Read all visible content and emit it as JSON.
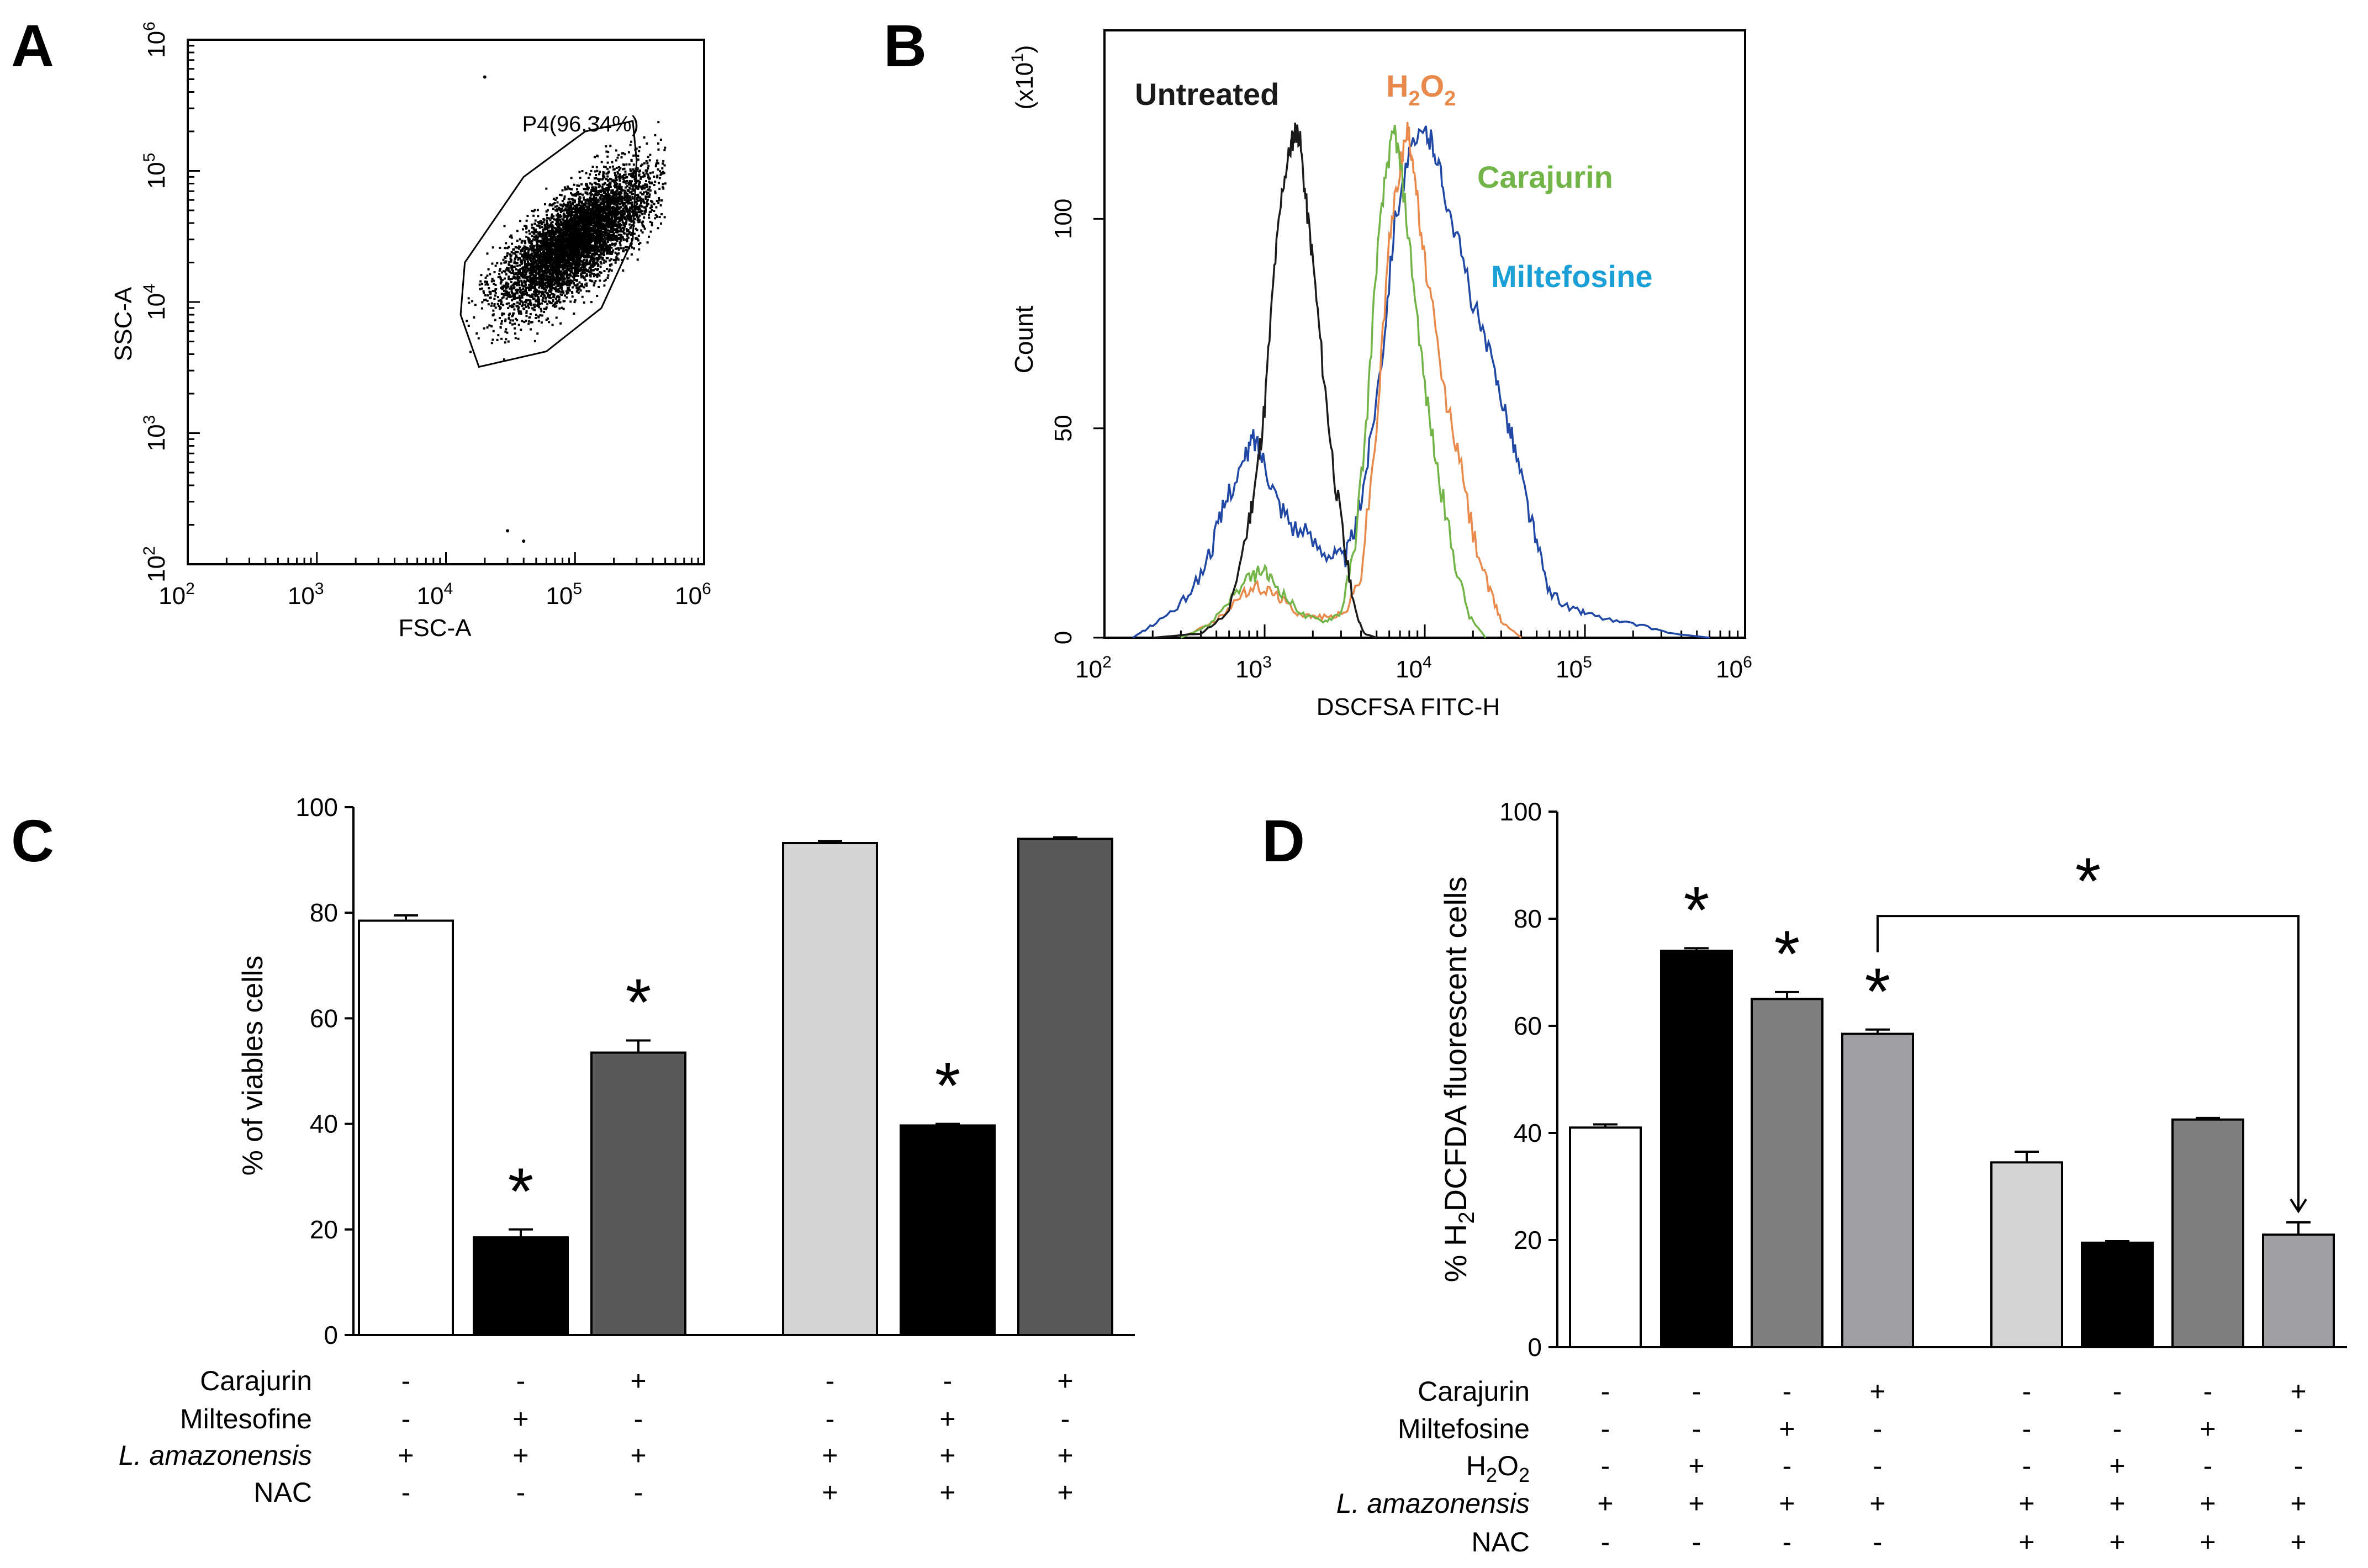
{
  "chart_data": [
    {
      "panel": "A",
      "type": "scatter",
      "xlabel": "FSC-A",
      "ylabel": "SSC-A",
      "xscale": "log",
      "yscale": "log",
      "xlim": [
        100,
        1000000
      ],
      "ylim": [
        100,
        1000000
      ],
      "xticks": [
        "10",
        "10",
        "10",
        "10",
        "10"
      ],
      "xtick_exps": [
        "2",
        "3",
        "4",
        "5",
        "6"
      ],
      "yticks": [
        "10",
        "10",
        "10",
        "10",
        "10"
      ],
      "ytick_exps": [
        "2",
        "3",
        "4",
        "5",
        "6"
      ],
      "gate_label": "P4(96.34%)",
      "gate_percent": 96.34,
      "cloud_center": [
        100000,
        30000
      ],
      "outliers": [
        [
          30000,
          180
        ],
        [
          40000,
          150
        ],
        [
          20000,
          520000
        ],
        [
          150000,
          250000
        ]
      ]
    },
    {
      "panel": "B",
      "type": "line",
      "xlabel": "DSCFSA FITC-H",
      "ylabel": "Count",
      "y_multiplier": "(x10",
      "y_multiplier_exp": "1",
      "y_multiplier_close": ")",
      "xscale": "log",
      "xlim": [
        100,
        1000000
      ],
      "ylim": [
        0,
        145
      ],
      "yticks": [
        0,
        50,
        100
      ],
      "xticks": [
        "10",
        "10",
        "10",
        "10",
        "10"
      ],
      "xtick_exps": [
        "2",
        "3",
        "4",
        "5",
        "6"
      ],
      "series": [
        {
          "name": "Untreated",
          "color": "#1a1a1a",
          "points": [
            [
              200,
              0
            ],
            [
              400,
              1
            ],
            [
              600,
              6
            ],
            [
              800,
              28
            ],
            [
              900,
              40
            ],
            [
              1000,
              55
            ],
            [
              1150,
              88
            ],
            [
              1300,
              108
            ],
            [
              1450,
              117
            ],
            [
              1550,
              121
            ],
            [
              1650,
              120
            ],
            [
              1800,
              105
            ],
            [
              2000,
              90
            ],
            [
              2300,
              65
            ],
            [
              2700,
              40
            ],
            [
              3200,
              20
            ],
            [
              3700,
              6
            ],
            [
              4200,
              1
            ],
            [
              5000,
              0
            ]
          ]
        },
        {
          "name": "H2O2",
          "label_main": "H",
          "label_sub1": "2",
          "label_mid": "O",
          "label_sub2": "2",
          "color": "#e98a4c",
          "points": [
            [
              300,
              0
            ],
            [
              500,
              4
            ],
            [
              700,
              10
            ],
            [
              900,
              12
            ],
            [
              1100,
              11
            ],
            [
              1300,
              9
            ],
            [
              1600,
              6
            ],
            [
              2000,
              5
            ],
            [
              2600,
              5
            ],
            [
              3200,
              6
            ],
            [
              4000,
              15
            ],
            [
              5000,
              50
            ],
            [
              6000,
              95
            ],
            [
              7000,
              113
            ],
            [
              7800,
              121
            ],
            [
              8500,
              114
            ],
            [
              9500,
              95
            ],
            [
              11000,
              80
            ],
            [
              13000,
              60
            ],
            [
              16000,
              45
            ],
            [
              20000,
              25
            ],
            [
              25000,
              12
            ],
            [
              30000,
              4
            ],
            [
              40000,
              0
            ]
          ]
        },
        {
          "name": "Carajurin",
          "color": "#72b447",
          "points": [
            [
              300,
              0
            ],
            [
              450,
              3
            ],
            [
              600,
              9
            ],
            [
              800,
              14
            ],
            [
              950,
              16
            ],
            [
              1100,
              14
            ],
            [
              1400,
              9
            ],
            [
              1800,
              5
            ],
            [
              2400,
              4
            ],
            [
              3000,
              6
            ],
            [
              3600,
              20
            ],
            [
              4300,
              50
            ],
            [
              5000,
              90
            ],
            [
              5800,
              113
            ],
            [
              6500,
              121
            ],
            [
              7200,
              110
            ],
            [
              8500,
              85
            ],
            [
              10000,
              60
            ],
            [
              12000,
              40
            ],
            [
              15000,
              20
            ],
            [
              19000,
              5
            ],
            [
              24000,
              0
            ]
          ]
        },
        {
          "name": "Miltefosine",
          "color": "#1f47a3",
          "points": [
            [
              150,
              0
            ],
            [
              200,
              3
            ],
            [
              300,
              8
            ],
            [
              400,
              15
            ],
            [
              500,
              25
            ],
            [
              600,
              35
            ],
            [
              750,
              42
            ],
            [
              850,
              48
            ],
            [
              1000,
              42
            ],
            [
              1200,
              33
            ],
            [
              1500,
              27
            ],
            [
              2000,
              23
            ],
            [
              2600,
              20
            ],
            [
              3200,
              19
            ],
            [
              3800,
              28
            ],
            [
              4500,
              45
            ],
            [
              5500,
              70
            ],
            [
              6500,
              100
            ],
            [
              8000,
              115
            ],
            [
              10000,
              121
            ],
            [
              11500,
              117
            ],
            [
              13000,
              108
            ],
            [
              16000,
              95
            ],
            [
              20000,
              80
            ],
            [
              25000,
              68
            ],
            [
              30000,
              58
            ],
            [
              35000,
              48
            ],
            [
              42000,
              35
            ],
            [
              50000,
              22
            ],
            [
              60000,
              11
            ],
            [
              80000,
              7
            ],
            [
              100000,
              6
            ],
            [
              150000,
              4
            ],
            [
              220000,
              3
            ],
            [
              350000,
              1
            ],
            [
              600000,
              0
            ]
          ]
        }
      ]
    },
    {
      "panel": "C",
      "type": "bar",
      "ylabel": "% of viables cells",
      "ylim": [
        0,
        100
      ],
      "yticks": [
        0,
        20,
        40,
        60,
        80,
        100
      ],
      "values": [
        78.5,
        18.5,
        53.5,
        93.2,
        39.7,
        94
      ],
      "errors": [
        1.0,
        1.5,
        2.3,
        0.4,
        0.3,
        0.3
      ],
      "bar_colors": [
        "#ffffff",
        "#000000",
        "#595959",
        "#d4d4d4",
        "#000000",
        "#595959"
      ],
      "significance": [
        "",
        "*",
        "*",
        "",
        "*",
        ""
      ],
      "condition_rows": [
        {
          "label": "Carajurin",
          "italic": false,
          "marks": [
            "-",
            "-",
            "+",
            "-",
            "-",
            "+"
          ]
        },
        {
          "label": "Miltesofine",
          "italic": false,
          "marks": [
            "-",
            "+",
            "-",
            "-",
            "+",
            "-"
          ]
        },
        {
          "label": "L. amazonensis",
          "italic": true,
          "marks": [
            "+",
            "+",
            "+",
            "+",
            "+",
            "+"
          ]
        },
        {
          "label": "NAC",
          "italic": false,
          "marks": [
            "-",
            "-",
            "-",
            "+",
            "+",
            "+"
          ]
        }
      ]
    },
    {
      "panel": "D",
      "type": "bar",
      "ylabel_pre": "% H",
      "ylabel_sub": "2",
      "ylabel_post": "DCFDA fluorescent cells",
      "ylim": [
        0,
        100
      ],
      "yticks": [
        0,
        20,
        40,
        60,
        80,
        100
      ],
      "values": [
        41,
        74,
        65,
        58.5,
        34.5,
        19.5,
        42.5,
        21
      ],
      "errors": [
        0.6,
        0.5,
        1.3,
        0.8,
        2.0,
        0.3,
        0.3,
        2.3
      ],
      "bar_colors": [
        "#ffffff",
        "#000000",
        "#7f7f7f",
        "#a0a0a4",
        "#d4d4d4",
        "#000000",
        "#7f7f7f",
        "#a0a0a4"
      ],
      "significance": [
        "",
        "*",
        "*",
        "*",
        "",
        "",
        "",
        ""
      ],
      "bracket": {
        "from": 3,
        "to": 7,
        "mark": "*"
      },
      "condition_rows": [
        {
          "label": "Carajurin",
          "italic": false,
          "marks": [
            "-",
            "-",
            "-",
            "+",
            "-",
            "-",
            "-",
            "+"
          ]
        },
        {
          "label": "Miltefosine",
          "italic": false,
          "marks": [
            "-",
            "-",
            "+",
            "-",
            "-",
            "-",
            "+",
            "-"
          ]
        },
        {
          "label": "H",
          "label_sub": "2",
          "label_post": "O",
          "label_sub2": "2",
          "italic": false,
          "marks": [
            "-",
            "+",
            "-",
            "-",
            "-",
            "+",
            "-",
            "-"
          ]
        },
        {
          "label": "L. amazonensis",
          "italic": true,
          "marks": [
            "+",
            "+",
            "+",
            "+",
            "+",
            "+",
            "+",
            "+"
          ]
        },
        {
          "label": "NAC",
          "italic": false,
          "marks": [
            "-",
            "-",
            "-",
            "-",
            "+",
            "+",
            "+",
            "+"
          ]
        }
      ]
    }
  ],
  "panel_letters": [
    "A",
    "B",
    "C",
    "D"
  ]
}
